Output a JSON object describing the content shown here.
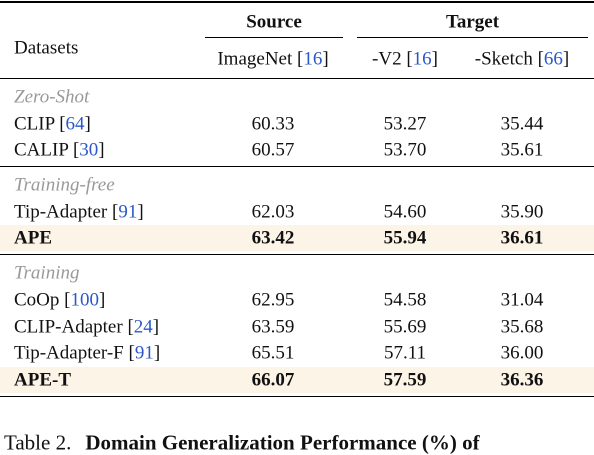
{
  "header": {
    "first": "Datasets",
    "groups": [
      {
        "label": "Source"
      },
      {
        "label": "Target"
      }
    ],
    "columns": [
      [
        "ImageNet [",
        "16",
        "]"
      ],
      [
        "-V2 [",
        "16",
        "]"
      ],
      [
        "-Sketch [",
        "66",
        "]"
      ]
    ]
  },
  "sections": [
    {
      "title": "Zero-Shot",
      "rows": [
        {
          "method": [
            "CLIP [",
            "64",
            "]"
          ],
          "values": [
            "60.33",
            "53.27",
            "35.44"
          ]
        },
        {
          "method": [
            "CALIP [",
            "30",
            "]"
          ],
          "values": [
            "60.57",
            "53.70",
            "35.61"
          ]
        }
      ]
    },
    {
      "title": "Training-free",
      "rows": [
        {
          "method": [
            "Tip-Adapter [",
            "91",
            "]"
          ],
          "values": [
            "62.03",
            "54.60",
            "35.90"
          ]
        },
        {
          "method": [
            "APE"
          ],
          "values": [
            "63.42",
            "55.94",
            "36.61"
          ],
          "highlight": true
        }
      ]
    },
    {
      "title": "Training",
      "rows": [
        {
          "method": [
            "CoOp [",
            "100",
            "]"
          ],
          "values": [
            "62.95",
            "54.58",
            "31.04"
          ]
        },
        {
          "method": [
            "CLIP-Adapter [",
            "24",
            "]"
          ],
          "values": [
            "63.59",
            "55.69",
            "35.68"
          ]
        },
        {
          "method": [
            "Tip-Adapter-F [",
            "91",
            "]"
          ],
          "values": [
            "65.51",
            "57.11",
            "36.00"
          ]
        },
        {
          "method": [
            "APE-T"
          ],
          "values": [
            "66.07",
            "57.59",
            "36.36"
          ],
          "highlight": true
        }
      ]
    }
  ],
  "caption": {
    "label": "Table 2.",
    "text": "Domain Generalization Performance (%) of"
  }
}
